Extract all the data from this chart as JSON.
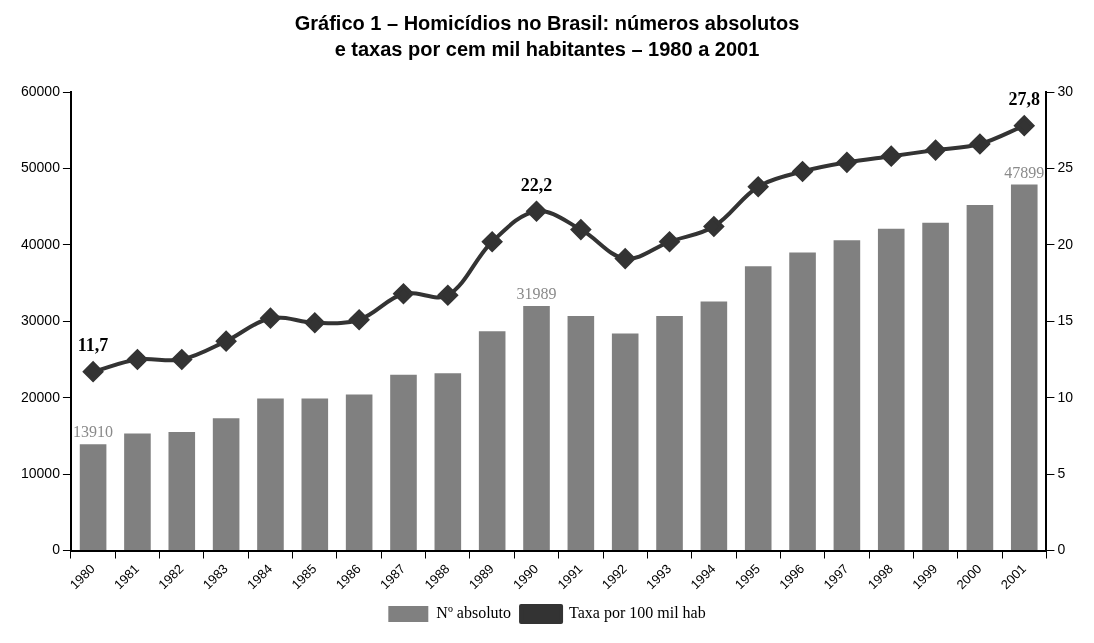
{
  "chart_data": {
    "type": "bar",
    "title": "Gráfico 1 – Homicídios no Brasil: números absolutos e taxas por cem mil habitantes – 1980 a 2001",
    "categories": [
      "1980",
      "1981",
      "1982",
      "1983",
      "1984",
      "1985",
      "1986",
      "1987",
      "1988",
      "1989",
      "1990",
      "1991",
      "1992",
      "1993",
      "1994",
      "1995",
      "1996",
      "1997",
      "1998",
      "1999",
      "2000",
      "2001"
    ],
    "series": [
      {
        "name": "Nº absoluto",
        "color": "#808080",
        "values": [
          13910,
          15300,
          15500,
          17300,
          19900,
          19900,
          20400,
          23000,
          23200,
          28700,
          31989,
          30700,
          28400,
          30700,
          32600,
          37200,
          39000,
          40600,
          42100,
          42900,
          45200,
          47899
        ],
        "value_labels": [
          "13910",
          null,
          null,
          null,
          null,
          null,
          null,
          null,
          null,
          null,
          "31989",
          null,
          null,
          null,
          null,
          null,
          null,
          null,
          null,
          null,
          null,
          "47899"
        ]
      },
      {
        "name": "Taxa por 100 mil hab",
        "type": "line",
        "axis": "y2",
        "color": "#333333",
        "marker": "diamond",
        "values": [
          11.7,
          12.5,
          12.5,
          13.7,
          15.2,
          14.9,
          15.1,
          16.8,
          16.7,
          20.2,
          22.2,
          21.0,
          19.1,
          20.2,
          21.2,
          23.8,
          24.8,
          25.4,
          25.8,
          26.2,
          26.6,
          27.8
        ],
        "value_labels": [
          "11,7",
          null,
          null,
          null,
          null,
          null,
          null,
          null,
          null,
          null,
          "22,2",
          null,
          null,
          null,
          null,
          null,
          null,
          null,
          null,
          null,
          null,
          "27,8"
        ]
      }
    ],
    "ylim": [
      0,
      60000
    ],
    "yticks": [
      0,
      10000,
      20000,
      30000,
      40000,
      50000,
      60000
    ],
    "y2lim": [
      0,
      30
    ],
    "y2ticks": [
      0,
      5,
      10,
      15,
      20,
      25,
      30
    ],
    "legend": "bottom"
  }
}
